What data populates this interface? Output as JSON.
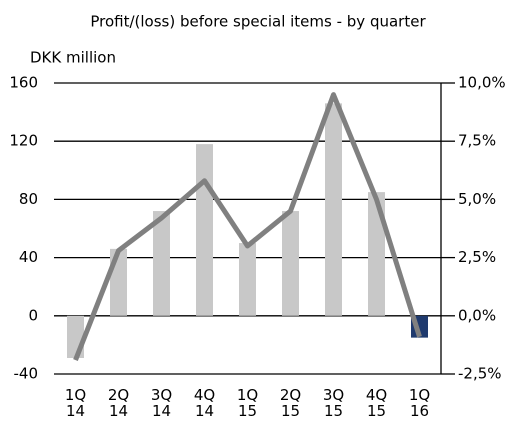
{
  "chart_data": {
    "type": "bar-line",
    "title": "Profit/(loss) before special items - by quarter",
    "y_label": "DKK million",
    "categories": [
      "1Q 14",
      "2Q 14",
      "3Q 14",
      "4Q 14",
      "1Q 15",
      "2Q 15",
      "3Q 15",
      "4Q 15",
      "1Q 16"
    ],
    "series": [
      {
        "type": "bar",
        "values": [
          -29,
          46,
          72,
          118,
          50,
          72,
          146,
          85,
          -15
        ],
        "colors": [
          "#c8c8c8",
          "#c8c8c8",
          "#c8c8c8",
          "#c8c8c8",
          "#c8c8c8",
          "#c8c8c8",
          "#c8c8c8",
          "#c8c8c8",
          "#1f3a6e"
        ]
      },
      {
        "type": "line",
        "axis": "y2",
        "color": "#808080",
        "values": [
          -1.9,
          2.8,
          4.2,
          5.8,
          3.0,
          4.5,
          9.5,
          5.0,
          -0.9
        ]
      }
    ],
    "ylim": [
      -40,
      160
    ],
    "yticks": [
      160,
      120,
      80,
      40,
      0,
      -40
    ],
    "y2lim": [
      -2.5,
      10
    ],
    "y2ticks": [
      {
        "value": 10,
        "label": "10,0%"
      },
      {
        "value": 7.5,
        "label": "7,5%"
      },
      {
        "value": 5,
        "label": "5,0%"
      },
      {
        "value": 2.5,
        "label": "2,5%"
      },
      {
        "value": 0,
        "label": "0,0%"
      },
      {
        "value": -2.5,
        "label": "-2,5%"
      }
    ],
    "grid": true
  }
}
